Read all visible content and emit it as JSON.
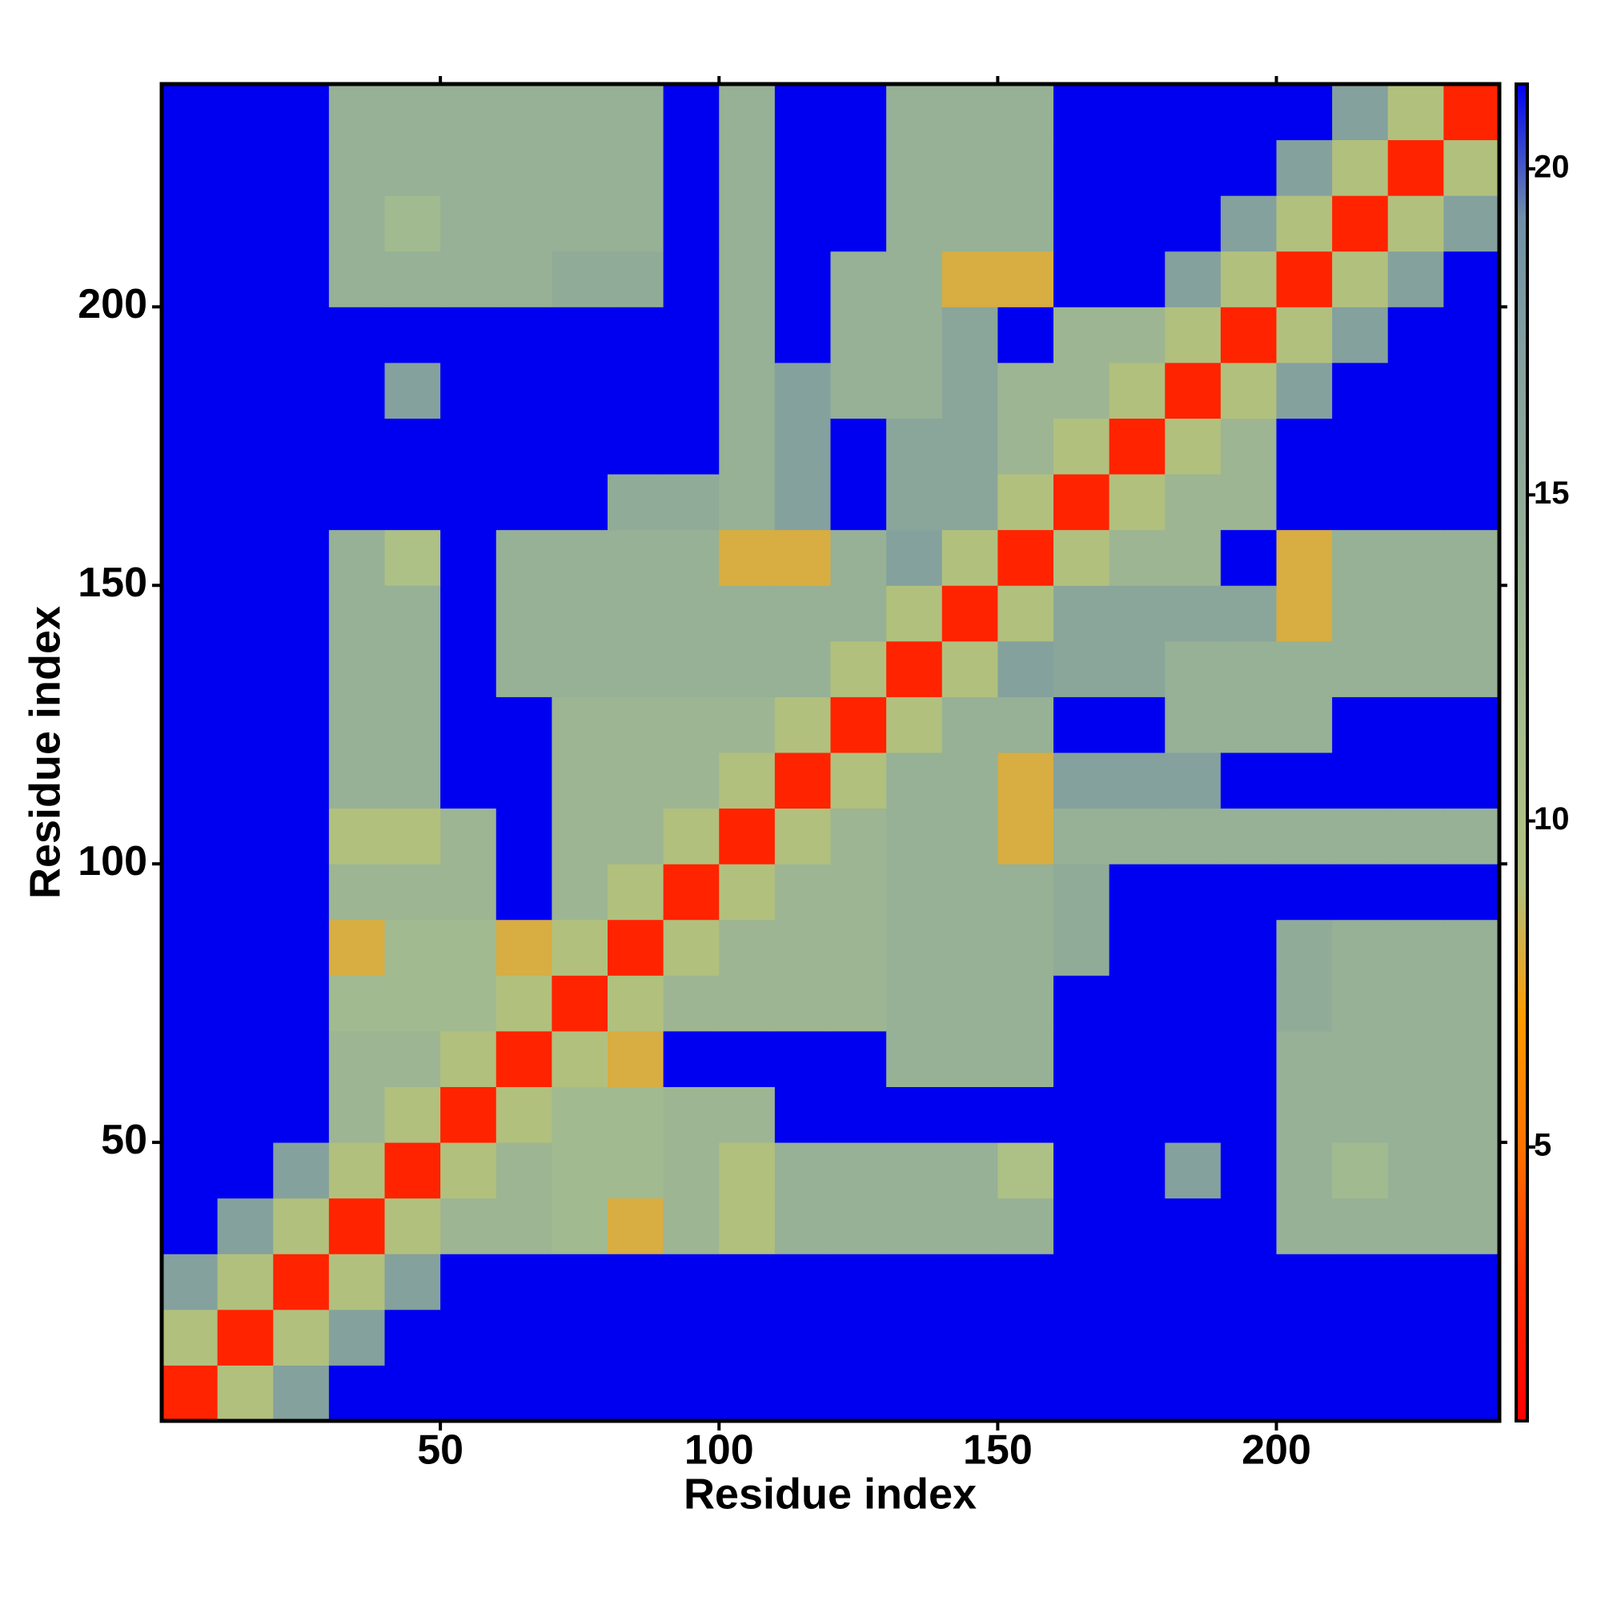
{
  "chart_data": {
    "type": "heatmap",
    "x_label": "Residue index",
    "y_label": "Residue index",
    "x": [
      5,
      15,
      25,
      35,
      45,
      55,
      65,
      75,
      85,
      95,
      105,
      115,
      125,
      135,
      145,
      155,
      165,
      175,
      185,
      195,
      205,
      215,
      225,
      235
    ],
    "y": [
      5,
      15,
      25,
      35,
      45,
      55,
      65,
      75,
      85,
      95,
      105,
      115,
      125,
      135,
      145,
      155,
      165,
      175,
      185,
      195,
      205,
      215,
      225,
      235
    ],
    "z": [
      [
        2.5,
        9,
        17,
        21.3,
        21.3,
        21.3,
        21.3,
        21.3,
        21.3,
        21.3,
        21.3,
        21.3,
        21.3,
        21.3,
        21.3,
        21.3,
        21.3,
        21.3,
        21.3,
        21.3,
        21.3,
        21.3,
        21.3,
        21.3
      ],
      [
        9,
        2.5,
        9,
        17,
        21.3,
        21.3,
        21.3,
        21.3,
        21.3,
        21.3,
        21.3,
        21.3,
        21.3,
        21.3,
        21.3,
        21.3,
        21.3,
        21.3,
        21.3,
        21.3,
        21.3,
        21.3,
        21.3,
        21.3
      ],
      [
        17,
        9,
        2.5,
        9,
        17,
        21.3,
        21.3,
        21.3,
        21.3,
        21.3,
        21.3,
        21.3,
        21.3,
        21.3,
        21.3,
        21.3,
        21.3,
        21.3,
        21.3,
        21.3,
        21.3,
        21.3,
        21.3,
        21.3
      ],
      [
        21.3,
        17,
        9,
        2.5,
        9,
        13,
        13,
        12,
        8,
        13,
        9,
        14,
        14,
        14,
        14,
        14,
        21.3,
        21.3,
        21.3,
        21.3,
        14,
        14,
        14,
        14
      ],
      [
        21.3,
        21.3,
        17,
        9,
        2.5,
        9,
        13,
        12,
        12,
        13,
        9,
        14,
        14,
        14,
        14,
        10,
        21.3,
        21.3,
        17,
        21.3,
        14,
        12,
        14,
        14
      ],
      [
        21.3,
        21.3,
        21.3,
        13,
        9,
        2.5,
        9,
        12,
        12,
        13,
        13,
        21.3,
        21.3,
        21.3,
        21.3,
        21.3,
        21.3,
        21.3,
        21.3,
        21.3,
        14,
        14,
        14,
        14
      ],
      [
        21.3,
        21.3,
        21.3,
        13,
        13,
        9,
        2.5,
        9,
        8,
        21.3,
        21.3,
        21.3,
        21.3,
        14,
        14,
        14,
        21.3,
        21.3,
        21.3,
        21.3,
        14,
        14,
        14,
        14
      ],
      [
        21.3,
        21.3,
        21.3,
        12,
        12,
        12,
        9,
        2.5,
        9,
        13,
        13,
        13,
        13,
        14,
        14,
        14,
        21.3,
        21.3,
        21.3,
        21.3,
        15,
        14,
        14,
        14
      ],
      [
        21.3,
        21.3,
        21.3,
        8,
        12,
        12,
        8,
        9,
        2.5,
        9,
        13,
        13,
        13,
        14,
        14,
        14,
        15,
        21.3,
        21.3,
        21.3,
        15,
        14,
        14,
        14
      ],
      [
        21.3,
        21.3,
        21.3,
        13,
        13,
        13,
        21.3,
        13,
        9,
        2.5,
        9,
        13,
        13,
        14,
        14,
        14,
        15,
        21.3,
        21.3,
        21.3,
        21.3,
        21.3,
        21.3,
        21.3
      ],
      [
        21.3,
        21.3,
        21.3,
        9,
        9,
        13,
        21.3,
        13,
        13,
        9,
        2.5,
        9,
        13,
        14,
        14,
        8,
        14,
        14,
        14,
        14,
        14,
        14,
        14,
        14
      ],
      [
        21.3,
        21.3,
        21.3,
        14,
        14,
        21.3,
        21.3,
        13,
        13,
        13,
        9,
        2.5,
        9,
        14,
        14,
        8,
        17,
        17,
        17,
        21.3,
        21.3,
        21.3,
        21.3,
        21.3
      ],
      [
        21.3,
        21.3,
        21.3,
        14,
        14,
        21.3,
        21.3,
        13,
        13,
        13,
        13,
        9,
        2.5,
        9,
        14,
        14,
        21.3,
        21.3,
        14,
        14,
        14,
        21.3,
        21.3,
        21.3
      ],
      [
        21.3,
        21.3,
        21.3,
        14,
        14,
        21.3,
        14,
        14,
        14,
        14,
        14,
        14,
        9,
        2.5,
        9,
        17,
        16,
        16,
        14,
        14,
        14,
        14,
        14,
        14
      ],
      [
        21.3,
        21.3,
        21.3,
        14,
        14,
        21.3,
        14,
        14,
        14,
        14,
        14,
        14,
        14,
        9,
        2.5,
        9,
        16,
        16,
        16,
        16,
        8,
        14,
        14,
        14
      ],
      [
        21.3,
        21.3,
        21.3,
        14,
        10,
        21.3,
        14,
        14,
        14,
        14,
        8,
        8,
        14,
        17,
        9,
        2.5,
        9,
        13,
        13,
        21.3,
        8,
        14,
        14,
        14
      ],
      [
        21.3,
        21.3,
        21.3,
        21.3,
        21.3,
        21.3,
        21.3,
        21.3,
        15,
        15,
        14,
        17,
        21.3,
        16,
        16,
        9,
        2.5,
        9,
        13,
        13,
        21.3,
        21.3,
        21.3,
        21.3
      ],
      [
        21.3,
        21.3,
        21.3,
        21.3,
        21.3,
        21.3,
        21.3,
        21.3,
        21.3,
        21.3,
        14,
        17,
        21.3,
        16,
        16,
        13,
        9,
        2.5,
        9,
        13,
        21.3,
        21.3,
        21.3,
        21.3
      ],
      [
        21.3,
        21.3,
        21.3,
        21.3,
        17,
        21.3,
        21.3,
        21.3,
        21.3,
        21.3,
        14,
        17,
        14,
        14,
        16,
        13,
        13,
        9,
        2.5,
        9,
        17,
        21.3,
        21.3,
        21.3
      ],
      [
        21.3,
        21.3,
        21.3,
        21.3,
        21.3,
        21.3,
        21.3,
        21.3,
        21.3,
        21.3,
        14,
        21.3,
        14,
        14,
        16,
        21.3,
        13,
        13,
        9,
        2.5,
        9,
        17,
        21.3,
        21.3
      ],
      [
        21.3,
        21.3,
        21.3,
        14,
        14,
        14,
        14,
        15,
        15,
        21.3,
        14,
        21.3,
        14,
        14,
        8,
        8,
        21.3,
        21.3,
        17,
        9,
        2.5,
        9,
        17,
        21.3
      ],
      [
        21.3,
        21.3,
        21.3,
        14,
        12,
        14,
        14,
        14,
        14,
        21.3,
        14,
        21.3,
        21.3,
        14,
        14,
        14,
        21.3,
        21.3,
        21.3,
        17,
        9,
        2.5,
        9,
        17
      ],
      [
        21.3,
        21.3,
        21.3,
        14,
        14,
        14,
        14,
        14,
        14,
        21.3,
        14,
        21.3,
        21.3,
        14,
        14,
        14,
        21.3,
        21.3,
        21.3,
        21.3,
        17,
        9,
        2.5,
        9
      ],
      [
        21.3,
        21.3,
        21.3,
        14,
        14,
        14,
        14,
        14,
        14,
        21.3,
        14,
        21.3,
        21.3,
        14,
        14,
        14,
        21.3,
        21.3,
        21.3,
        21.3,
        21.3,
        17,
        9,
        2.5
      ]
    ],
    "xlim": [
      0,
      240
    ],
    "ylim": [
      0,
      240
    ],
    "xticks": [
      50,
      100,
      150,
      200
    ],
    "yticks": [
      50,
      100,
      150,
      200
    ],
    "colorbar": {
      "lim": [
        0.8,
        21.3
      ],
      "ticks": [
        5,
        10,
        15,
        20
      ],
      "colors": [
        "#ff0000",
        "#ff2a00",
        "#ff7000",
        "#ff9a00",
        "#b2c07e",
        "#a8bf8c",
        "#9cb592",
        "#8fab98",
        "#83a09e",
        "#7090a8",
        "#0000f0"
      ]
    }
  }
}
